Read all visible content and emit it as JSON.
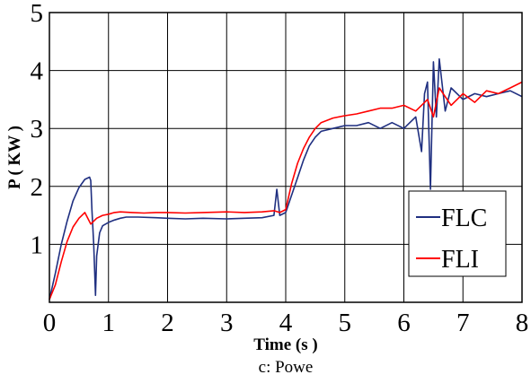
{
  "chart_data": {
    "type": "line",
    "title": "",
    "xlabel": "Time (s )",
    "ylabel": "P ( KW )",
    "caption": "c: Powe",
    "xlim": [
      0,
      8
    ],
    "ylim": [
      0,
      5
    ],
    "x_ticks": [
      "0",
      "1",
      "2",
      "3",
      "4",
      "5",
      "6",
      "7",
      "8"
    ],
    "y_ticks": [
      "1",
      "2",
      "3",
      "4",
      "5"
    ],
    "grid": true,
    "legend_position": "bottom-right",
    "series": [
      {
        "name": "FLC",
        "color": "#1f2f80",
        "x": [
          0,
          0.1,
          0.2,
          0.3,
          0.4,
          0.5,
          0.6,
          0.68,
          0.7,
          0.72,
          0.75,
          0.78,
          0.8,
          0.85,
          0.9,
          1.0,
          1.1,
          1.2,
          1.3,
          1.5,
          1.8,
          2.0,
          2.3,
          2.6,
          3.0,
          3.3,
          3.6,
          3.8,
          3.85,
          3.9,
          4.0,
          4.1,
          4.2,
          4.3,
          4.4,
          4.5,
          4.6,
          4.8,
          5.0,
          5.2,
          5.4,
          5.6,
          5.8,
          6.0,
          6.2,
          6.3,
          6.35,
          6.4,
          6.45,
          6.5,
          6.55,
          6.6,
          6.7,
          6.8,
          7.0,
          7.2,
          7.4,
          7.6,
          7.8,
          8.0
        ],
        "y": [
          0.05,
          0.5,
          1.0,
          1.4,
          1.75,
          1.98,
          2.12,
          2.16,
          2.1,
          1.6,
          1.0,
          0.12,
          0.8,
          1.2,
          1.32,
          1.38,
          1.42,
          1.45,
          1.47,
          1.47,
          1.46,
          1.45,
          1.44,
          1.45,
          1.44,
          1.45,
          1.46,
          1.5,
          1.95,
          1.5,
          1.55,
          1.85,
          2.15,
          2.45,
          2.7,
          2.85,
          2.95,
          3.0,
          3.05,
          3.05,
          3.1,
          3.0,
          3.1,
          3.0,
          3.2,
          2.6,
          3.6,
          3.8,
          1.95,
          4.15,
          3.2,
          4.2,
          3.3,
          3.7,
          3.5,
          3.6,
          3.55,
          3.6,
          3.65,
          3.55
        ]
      },
      {
        "name": "FLI",
        "color": "#ff0000",
        "x": [
          0,
          0.1,
          0.2,
          0.3,
          0.4,
          0.5,
          0.6,
          0.7,
          0.8,
          0.9,
          1.0,
          1.1,
          1.2,
          1.4,
          1.6,
          1.8,
          2.0,
          2.3,
          2.6,
          3.0,
          3.3,
          3.6,
          3.8,
          3.9,
          4.0,
          4.1,
          4.2,
          4.3,
          4.4,
          4.5,
          4.6,
          4.8,
          5.0,
          5.2,
          5.4,
          5.6,
          5.8,
          6.0,
          6.2,
          6.4,
          6.5,
          6.6,
          6.8,
          7.0,
          7.2,
          7.4,
          7.6,
          7.8,
          8.0
        ],
        "y": [
          0.05,
          0.3,
          0.7,
          1.05,
          1.3,
          1.45,
          1.55,
          1.35,
          1.45,
          1.5,
          1.52,
          1.55,
          1.56,
          1.55,
          1.54,
          1.55,
          1.55,
          1.54,
          1.55,
          1.56,
          1.55,
          1.56,
          1.58,
          1.55,
          1.6,
          2.05,
          2.4,
          2.65,
          2.85,
          3.0,
          3.1,
          3.18,
          3.22,
          3.25,
          3.3,
          3.35,
          3.35,
          3.4,
          3.3,
          3.5,
          3.2,
          3.7,
          3.4,
          3.6,
          3.45,
          3.65,
          3.6,
          3.7,
          3.8
        ]
      }
    ]
  }
}
